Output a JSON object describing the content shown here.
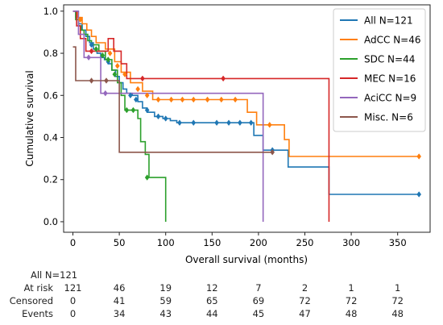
{
  "chart_data": {
    "type": "line",
    "subtype": "kaplan-meier step",
    "title": "",
    "xlabel": "Overall survival (months)",
    "ylabel": "Cumulative survival",
    "xlim": [
      -10,
      385
    ],
    "ylim": [
      -0.05,
      1.03
    ],
    "xticks": [
      0,
      50,
      100,
      150,
      200,
      250,
      300,
      350
    ],
    "yticks": [
      0.0,
      0.2,
      0.4,
      0.6,
      0.8,
      1.0
    ],
    "ytick_labels": [
      "0.0",
      "0.2",
      "0.4",
      "0.6",
      "0.8",
      "1.0"
    ],
    "grid": false,
    "legend_position": "top-right",
    "series": [
      {
        "name": "All N=121",
        "color": "#1f77b4",
        "steps": [
          [
            0,
            1.0
          ],
          [
            3,
            0.97
          ],
          [
            6,
            0.94
          ],
          [
            10,
            0.91
          ],
          [
            14,
            0.88
          ],
          [
            18,
            0.85
          ],
          [
            22,
            0.82
          ],
          [
            26,
            0.8
          ],
          [
            30,
            0.78
          ],
          [
            34,
            0.77
          ],
          [
            38,
            0.75
          ],
          [
            42,
            0.72
          ],
          [
            46,
            0.69
          ],
          [
            50,
            0.66
          ],
          [
            54,
            0.63
          ],
          [
            58,
            0.61
          ],
          [
            64,
            0.6
          ],
          [
            70,
            0.57
          ],
          [
            75,
            0.54
          ],
          [
            80,
            0.52
          ],
          [
            88,
            0.5
          ],
          [
            97,
            0.49
          ],
          [
            105,
            0.48
          ],
          [
            112,
            0.47
          ],
          [
            195,
            0.41
          ],
          [
            205,
            0.34
          ],
          [
            232,
            0.26
          ],
          [
            276,
            0.13
          ],
          [
            373,
            0.13
          ]
        ],
        "censored": [
          [
            20,
            0.84
          ],
          [
            38,
            0.76
          ],
          [
            62,
            0.6
          ],
          [
            68,
            0.58
          ],
          [
            80,
            0.53
          ],
          [
            92,
            0.5
          ],
          [
            100,
            0.49
          ],
          [
            115,
            0.47
          ],
          [
            130,
            0.47
          ],
          [
            155,
            0.47
          ],
          [
            168,
            0.47
          ],
          [
            180,
            0.47
          ],
          [
            192,
            0.47
          ],
          [
            215,
            0.34
          ],
          [
            373,
            0.13
          ]
        ]
      },
      {
        "name": "AdCC N=46",
        "color": "#ff7f0e",
        "steps": [
          [
            0,
            1.0
          ],
          [
            5,
            0.97
          ],
          [
            10,
            0.94
          ],
          [
            15,
            0.91
          ],
          [
            20,
            0.88
          ],
          [
            25,
            0.85
          ],
          [
            35,
            0.82
          ],
          [
            45,
            0.76
          ],
          [
            52,
            0.71
          ],
          [
            62,
            0.66
          ],
          [
            75,
            0.62
          ],
          [
            86,
            0.58
          ],
          [
            188,
            0.52
          ],
          [
            198,
            0.46
          ],
          [
            228,
            0.39
          ],
          [
            233,
            0.31
          ],
          [
            373,
            0.31
          ]
        ],
        "censored": [
          [
            8,
            0.96
          ],
          [
            40,
            0.8
          ],
          [
            48,
            0.74
          ],
          [
            56,
            0.7
          ],
          [
            70,
            0.63
          ],
          [
            80,
            0.6
          ],
          [
            92,
            0.58
          ],
          [
            106,
            0.58
          ],
          [
            118,
            0.58
          ],
          [
            130,
            0.58
          ],
          [
            145,
            0.58
          ],
          [
            160,
            0.58
          ],
          [
            175,
            0.58
          ],
          [
            212,
            0.46
          ],
          [
            373,
            0.31
          ]
        ]
      },
      {
        "name": "SDC N=44",
        "color": "#2ca02c",
        "steps": [
          [
            0,
            1.0
          ],
          [
            3,
            0.96
          ],
          [
            6,
            0.93
          ],
          [
            9,
            0.91
          ],
          [
            12,
            0.89
          ],
          [
            16,
            0.86
          ],
          [
            20,
            0.84
          ],
          [
            28,
            0.81
          ],
          [
            35,
            0.77
          ],
          [
            42,
            0.72
          ],
          [
            48,
            0.66
          ],
          [
            52,
            0.6
          ],
          [
            56,
            0.53
          ],
          [
            70,
            0.49
          ],
          [
            73,
            0.38
          ],
          [
            78,
            0.32
          ],
          [
            82,
            0.21
          ],
          [
            100,
            0.0
          ]
        ],
        "censored": [
          [
            25,
            0.82
          ],
          [
            32,
            0.79
          ],
          [
            38,
            0.77
          ],
          [
            45,
            0.7
          ],
          [
            58,
            0.53
          ],
          [
            65,
            0.53
          ],
          [
            80,
            0.21
          ]
        ]
      },
      {
        "name": "MEC N=16",
        "color": "#d62728",
        "steps": [
          [
            0,
            1.0
          ],
          [
            4,
            0.93
          ],
          [
            8,
            0.87
          ],
          [
            14,
            0.81
          ],
          [
            38,
            0.87
          ],
          [
            44,
            0.81
          ],
          [
            52,
            0.75
          ],
          [
            58,
            0.68
          ],
          [
            276,
            0.0
          ]
        ],
        "censored": [
          [
            20,
            0.81
          ],
          [
            75,
            0.68
          ],
          [
            162,
            0.68
          ]
        ]
      },
      {
        "name": "AciCC N=9",
        "color": "#9467bd",
        "steps": [
          [
            0,
            1.0
          ],
          [
            6,
            0.89
          ],
          [
            12,
            0.78
          ],
          [
            30,
            0.61
          ],
          [
            205,
            0.0
          ]
        ],
        "censored": [
          [
            17,
            0.78
          ],
          [
            35,
            0.61
          ]
        ]
      },
      {
        "name": "Misc. N=6",
        "color": "#8c564b",
        "steps": [
          [
            0,
            0.83
          ],
          [
            3,
            0.67
          ],
          [
            50,
            0.33
          ],
          [
            215,
            0.33
          ]
        ],
        "censored": [
          [
            20,
            0.67
          ],
          [
            36,
            0.67
          ],
          [
            215,
            0.33
          ]
        ]
      }
    ]
  },
  "risk_table": {
    "title": "All N=121",
    "times": [
      0,
      50,
      100,
      150,
      200,
      250,
      300,
      350
    ],
    "rows": [
      {
        "label": "At risk",
        "values": [
          "121",
          "46",
          "19",
          "12",
          "7",
          "2",
          "1",
          "1"
        ]
      },
      {
        "label": "Censored",
        "values": [
          "0",
          "41",
          "59",
          "65",
          "69",
          "72",
          "72",
          "72"
        ]
      },
      {
        "label": "Events",
        "values": [
          "0",
          "34",
          "43",
          "44",
          "45",
          "47",
          "48",
          "48"
        ]
      }
    ]
  }
}
